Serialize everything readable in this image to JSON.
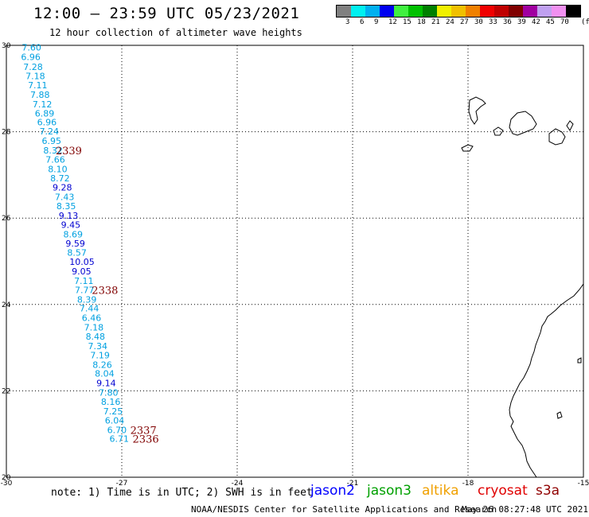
{
  "header": {
    "title": "12:00 – 23:59 UTC 05/23/2021",
    "subtitle": "12 hour collection of altimeter wave heights"
  },
  "legend": {
    "colors": [
      "#808080",
      "#00f0f0",
      "#00b0f0",
      "#0000f0",
      "#40f040",
      "#00c000",
      "#008000",
      "#f0f000",
      "#f0c000",
      "#f08000",
      "#f00000",
      "#c00000",
      "#800000",
      "#a000a0",
      "#c0a0f0",
      "#f090f0",
      "#000000"
    ],
    "labels": [
      "3",
      "6",
      "9",
      "12",
      "15",
      "18",
      "21",
      "24",
      "27",
      "30",
      "33",
      "36",
      "39",
      "42",
      "45",
      "70",
      "(ft)"
    ]
  },
  "map": {
    "lon_range": [
      -30,
      -15
    ],
    "lat_range": [
      20,
      30
    ],
    "lon_ticks": [
      "-30",
      "-27",
      "-24",
      "-21",
      "-18",
      "-15"
    ],
    "lat_ticks": [
      "30",
      "28",
      "26",
      "24",
      "22",
      "20"
    ],
    "grid": "dotted"
  },
  "observations": [
    {
      "lon": -29.6,
      "lat": 29.95,
      "v": "7.60",
      "c": "#00a0e0"
    },
    {
      "lon": -29.62,
      "lat": 29.73,
      "v": "6.96",
      "c": "#00a0e0"
    },
    {
      "lon": -29.56,
      "lat": 29.5,
      "v": "7.28",
      "c": "#00a0e0"
    },
    {
      "lon": -29.5,
      "lat": 29.29,
      "v": "7.18",
      "c": "#00a0e0"
    },
    {
      "lon": -29.44,
      "lat": 29.08,
      "v": "7.11",
      "c": "#00a0e0"
    },
    {
      "lon": -29.38,
      "lat": 28.86,
      "v": "7.88",
      "c": "#00a0e0"
    },
    {
      "lon": -29.32,
      "lat": 28.64,
      "v": "7.12",
      "c": "#00a0e0"
    },
    {
      "lon": -29.26,
      "lat": 28.43,
      "v": "6.89",
      "c": "#00a0e0"
    },
    {
      "lon": -29.2,
      "lat": 28.22,
      "v": "6.96",
      "c": "#00a0e0"
    },
    {
      "lon": -29.14,
      "lat": 28.01,
      "v": "7.24",
      "c": "#00a0e0"
    },
    {
      "lon": -29.08,
      "lat": 27.79,
      "v": "6.95",
      "c": "#00a0e0"
    },
    {
      "lon": -29.04,
      "lat": 27.57,
      "v": "8.32",
      "c": "#00a0e0"
    },
    {
      "lon": -28.98,
      "lat": 27.36,
      "v": "7.66",
      "c": "#00a0e0"
    },
    {
      "lon": -28.92,
      "lat": 27.14,
      "v": "8.10",
      "c": "#00a0e0"
    },
    {
      "lon": -28.86,
      "lat": 26.92,
      "v": "8.72",
      "c": "#00a0e0"
    },
    {
      "lon": -28.8,
      "lat": 26.71,
      "v": "9.28",
      "c": "#0000d0"
    },
    {
      "lon": -28.74,
      "lat": 26.49,
      "v": "7.43",
      "c": "#00a0e0"
    },
    {
      "lon": -28.7,
      "lat": 26.28,
      "v": "8.35",
      "c": "#00a0e0"
    },
    {
      "lon": -28.64,
      "lat": 26.06,
      "v": "9.13",
      "c": "#0000d0"
    },
    {
      "lon": -28.58,
      "lat": 25.85,
      "v": "9.45",
      "c": "#0000d0"
    },
    {
      "lon": -28.52,
      "lat": 25.63,
      "v": "8.69",
      "c": "#00a0e0"
    },
    {
      "lon": -28.46,
      "lat": 25.41,
      "v": "9.59",
      "c": "#0000d0"
    },
    {
      "lon": -28.42,
      "lat": 25.2,
      "v": "8.57",
      "c": "#00a0e0"
    },
    {
      "lon": -28.36,
      "lat": 24.99,
      "v": "10.05",
      "c": "#0000d0"
    },
    {
      "lon": -28.3,
      "lat": 24.77,
      "v": "9.05",
      "c": "#0000d0"
    },
    {
      "lon": -28.24,
      "lat": 24.55,
      "v": "7.11",
      "c": "#00a0e0"
    },
    {
      "lon": -28.22,
      "lat": 24.34,
      "v": "7.77",
      "c": "#00a0e0"
    },
    {
      "lon": -28.16,
      "lat": 24.12,
      "v": "8.39",
      "c": "#00a0e0"
    },
    {
      "lon": -28.1,
      "lat": 23.91,
      "v": "7.44",
      "c": "#00a0e0"
    },
    {
      "lon": -28.04,
      "lat": 23.69,
      "v": "6.46",
      "c": "#00a0e0"
    },
    {
      "lon": -27.98,
      "lat": 23.47,
      "v": "7.18",
      "c": "#00a0e0"
    },
    {
      "lon": -27.94,
      "lat": 23.26,
      "v": "8.48",
      "c": "#00a0e0"
    },
    {
      "lon": -27.88,
      "lat": 23.04,
      "v": "7.34",
      "c": "#00a0e0"
    },
    {
      "lon": -27.82,
      "lat": 22.83,
      "v": "7.19",
      "c": "#00a0e0"
    },
    {
      "lon": -27.76,
      "lat": 22.61,
      "v": "8.26",
      "c": "#00a0e0"
    },
    {
      "lon": -27.7,
      "lat": 22.4,
      "v": "8.04",
      "c": "#00a0e0"
    },
    {
      "lon": -27.66,
      "lat": 22.18,
      "v": "9.14",
      "c": "#0000d0"
    },
    {
      "lon": -27.6,
      "lat": 21.96,
      "v": "7.80",
      "c": "#00a0e0"
    },
    {
      "lon": -27.54,
      "lat": 21.75,
      "v": "8.16",
      "c": "#00a0e0"
    },
    {
      "lon": -27.48,
      "lat": 21.53,
      "v": "7.25",
      "c": "#00a0e0"
    },
    {
      "lon": -27.44,
      "lat": 21.32,
      "v": "6.04",
      "c": "#00a0e0"
    },
    {
      "lon": -27.38,
      "lat": 21.1,
      "v": "6.70",
      "c": "#00a0e0"
    },
    {
      "lon": -27.32,
      "lat": 20.89,
      "v": "6.71",
      "c": "#00a0e0"
    }
  ],
  "pass_times": [
    {
      "lon": -28.72,
      "lat": 27.57,
      "t": "2339"
    },
    {
      "lon": -27.78,
      "lat": 24.34,
      "t": "2338"
    },
    {
      "lon": -26.78,
      "lat": 21.1,
      "t": "2337"
    },
    {
      "lon": -26.72,
      "lat": 20.89,
      "t": "2336"
    }
  ],
  "footer": {
    "note": "note: 1) Time is in UTC; 2) SWH is in feet",
    "satellites": [
      {
        "name": "jason2",
        "color": "#0000ff"
      },
      {
        "name": "jason3",
        "color": "#00a000"
      },
      {
        "name": "altika",
        "color": "#f0a000"
      },
      {
        "name": "cryosat",
        "color": "#e00000"
      },
      {
        "name": "s3a",
        "color": "#900000"
      }
    ],
    "credit": "NOAA/NESDIS Center for Satellite Applications and Research",
    "generated": "May 26 08:27:48 UTC 2021"
  }
}
